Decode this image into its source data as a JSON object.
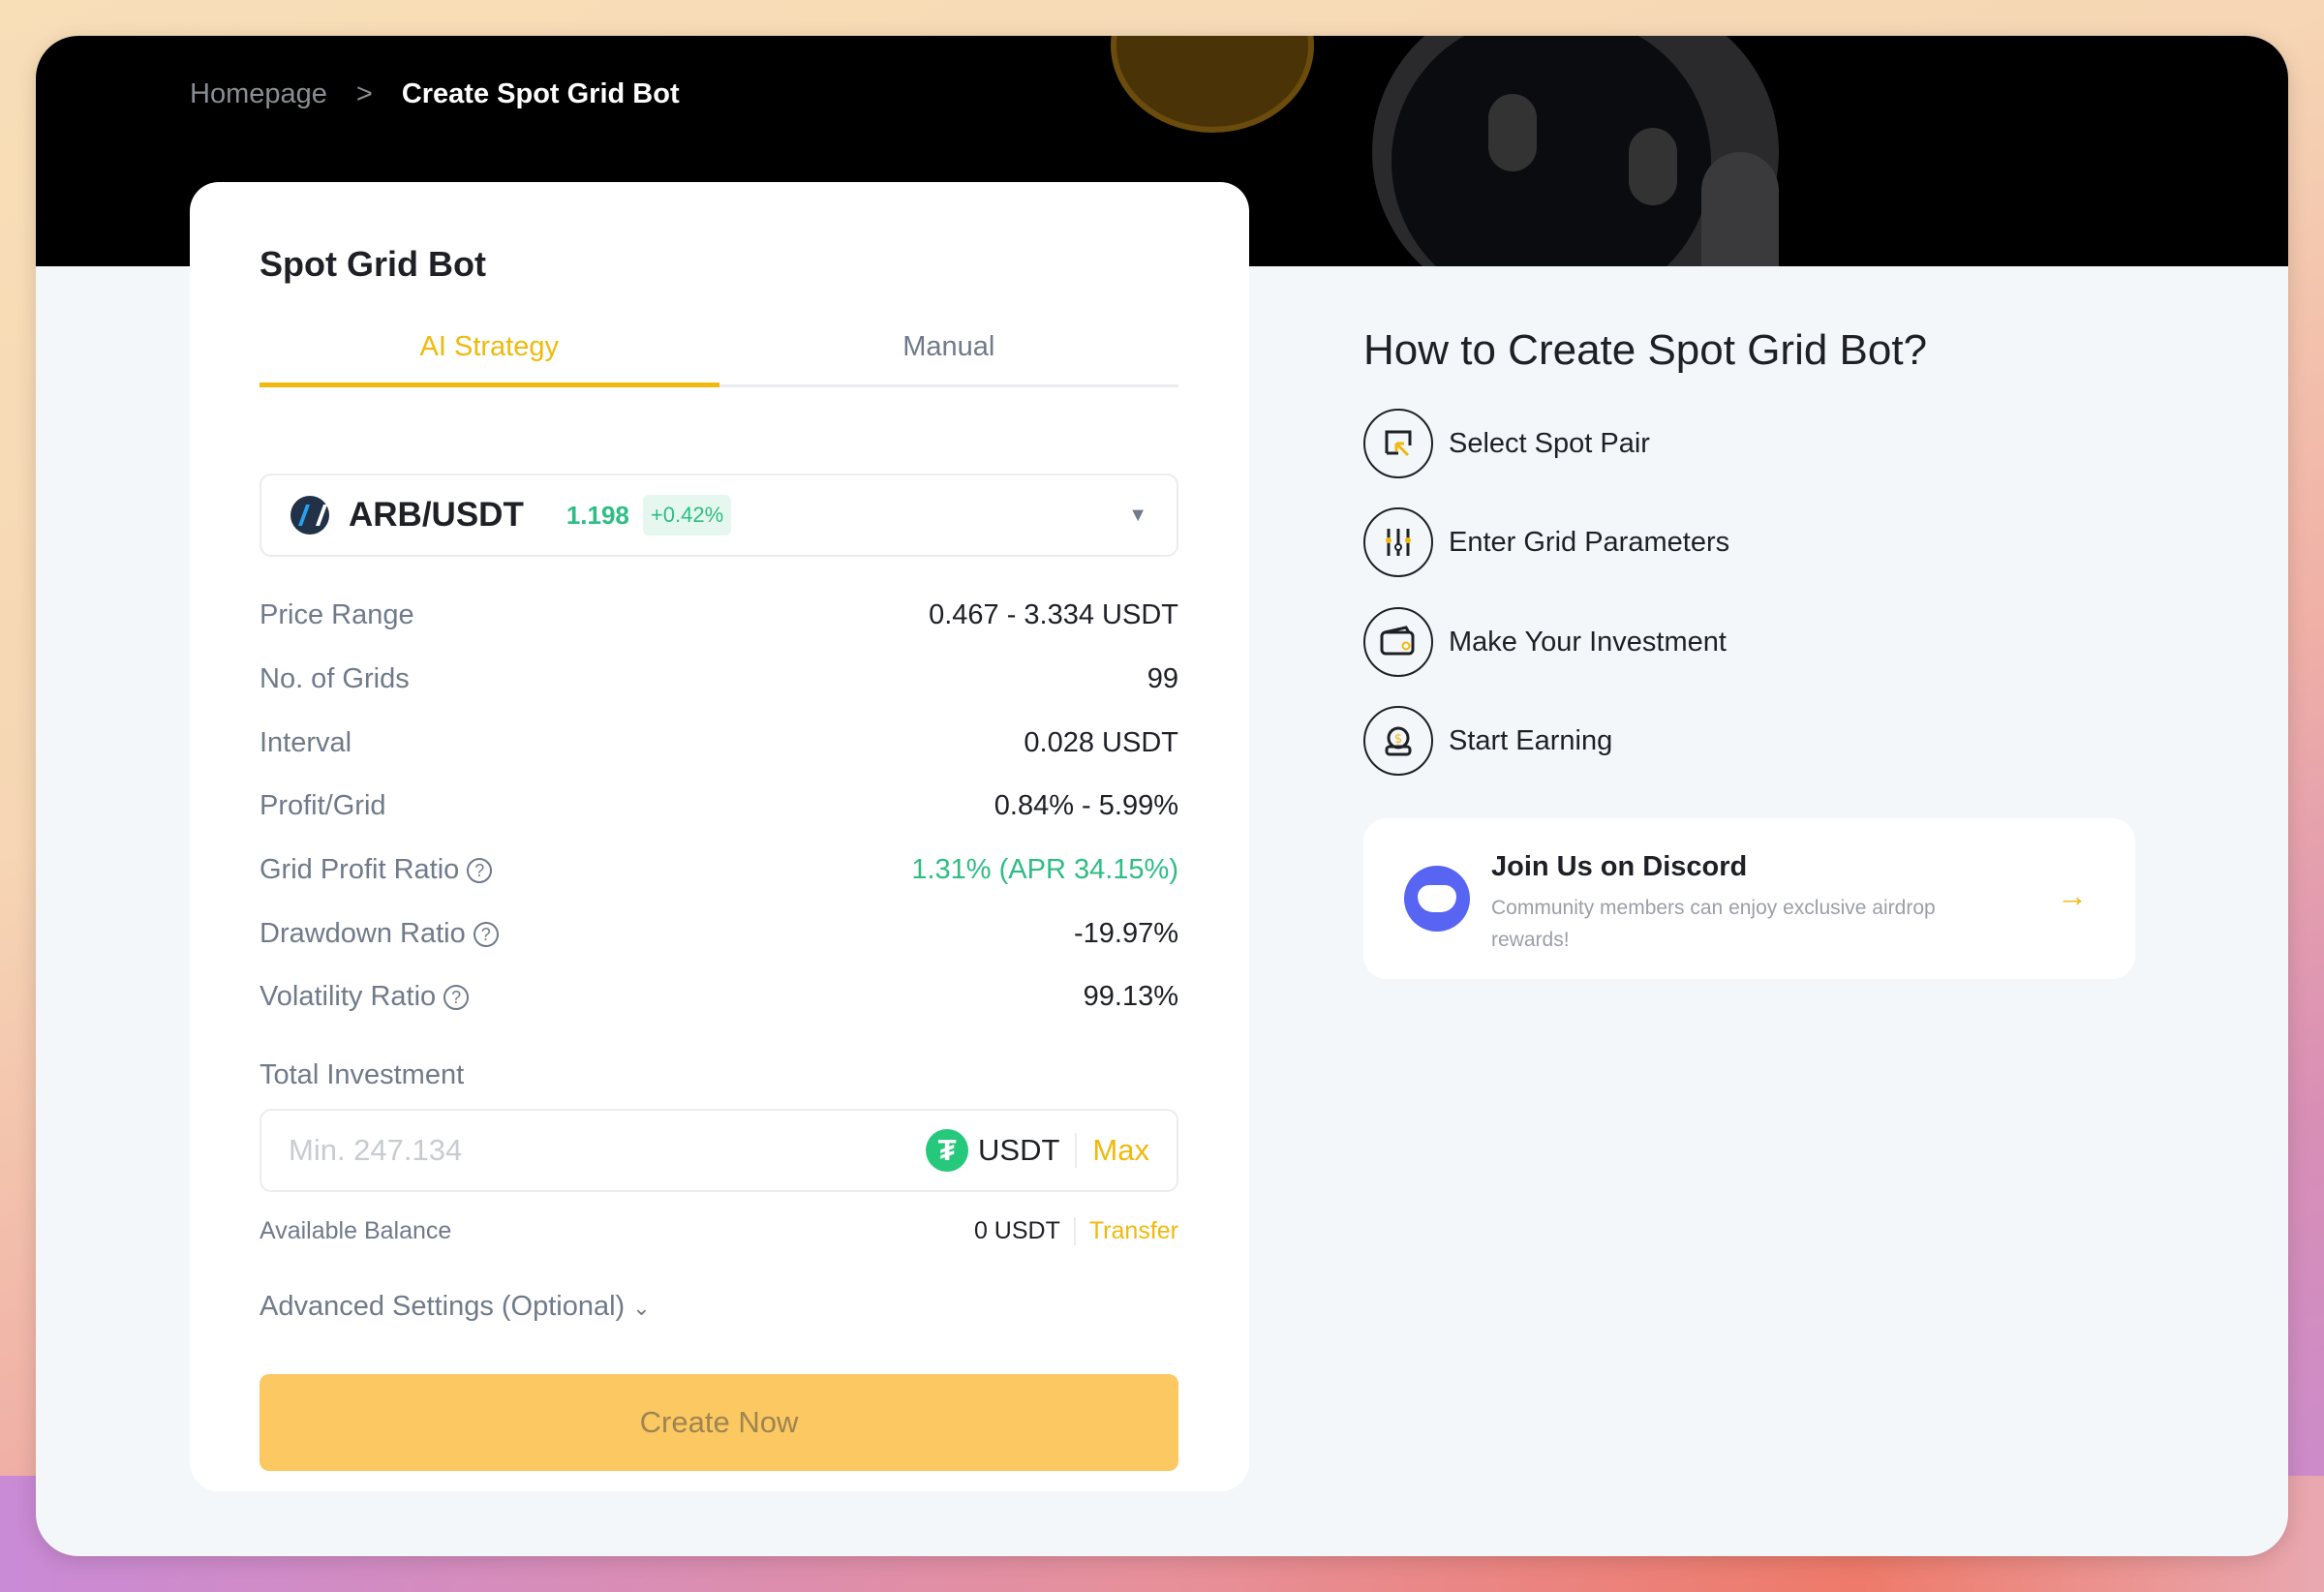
{
  "breadcrumb": {
    "home": "Homepage",
    "separator": ">",
    "current": "Create Spot Grid Bot"
  },
  "card": {
    "title": "Spot Grid Bot",
    "tabs": [
      {
        "label": "AI Strategy",
        "active": true
      },
      {
        "label": "Manual",
        "active": false
      }
    ],
    "pair": {
      "name": "ARB/USDT",
      "price": "1.198",
      "change": "+0.42%",
      "icon": "arbitrum-logo"
    },
    "rows": [
      {
        "label": "Price Range",
        "value": "0.467 - 3.334 USDT"
      },
      {
        "label": "No. of Grids",
        "value": "99"
      },
      {
        "label": "Interval",
        "value": "0.028 USDT"
      },
      {
        "label": "Profit/Grid",
        "value": "0.84% - 5.99%"
      },
      {
        "label": "Grid Profit Ratio",
        "value": "1.31% (APR 34.15%)",
        "help": "?"
      },
      {
        "label": "Drawdown Ratio",
        "value": "-19.97%",
        "help": "?"
      },
      {
        "label": "Volatility Ratio",
        "value": "99.13%",
        "help": "?"
      }
    ],
    "investment": {
      "label": "Total Investment",
      "placeholder": "Min. 247.134",
      "currency": "USDT",
      "max": "Max"
    },
    "balance": {
      "label": "Available Balance",
      "value": "0 USDT",
      "transfer": "Transfer"
    },
    "advanced": "Advanced Settings (Optional)",
    "create": "Create Now"
  },
  "guide": {
    "title": "How to Create Spot Grid Bot?",
    "steps": [
      {
        "label": "Select Spot Pair",
        "icon": "select-pair-icon"
      },
      {
        "label": "Enter Grid Parameters",
        "icon": "sliders-icon"
      },
      {
        "label": "Make Your Investment",
        "icon": "wallet-icon"
      },
      {
        "label": "Start Earning",
        "icon": "money-bag-icon"
      }
    ],
    "discord": {
      "title": "Join Us on Discord",
      "desc": "Community members can enjoy exclusive airdrop rewards!"
    }
  },
  "colors": {
    "accent": "#f0b90b",
    "positive": "#2ebd85",
    "button": "#fbc862"
  }
}
